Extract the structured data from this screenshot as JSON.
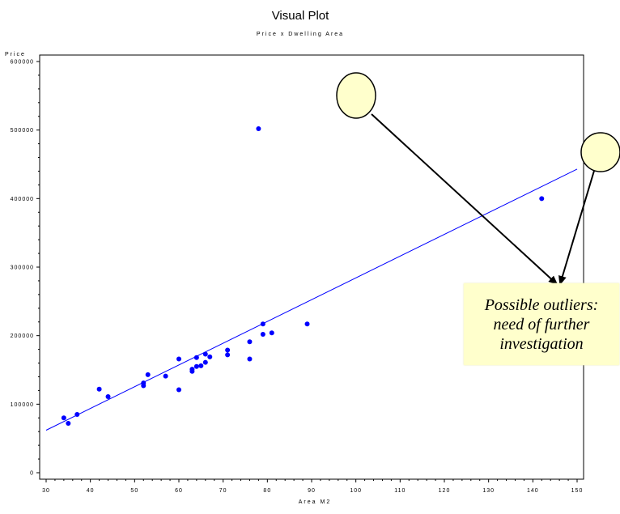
{
  "chart_data": {
    "type": "scatter",
    "title": "Visual Plot",
    "subtitle": "Price x Dwelling Area",
    "xlabel": "Area M2",
    "ylabel": "Price",
    "xlim": [
      30,
      150
    ],
    "ylim": [
      0,
      600000
    ],
    "x_ticks": [
      30,
      40,
      50,
      60,
      70,
      80,
      90,
      100,
      110,
      120,
      130,
      140,
      150
    ],
    "y_ticks": [
      0,
      100000,
      200000,
      300000,
      400000,
      500000,
      600000
    ],
    "x_tick_labels": [
      "30",
      "40",
      "50",
      "60",
      "70",
      "80",
      "90",
      "100",
      "110",
      "120",
      "130",
      "140",
      "150"
    ],
    "y_tick_labels": [
      "0",
      "100000",
      "200000",
      "300000",
      "400000",
      "500000",
      "600000"
    ],
    "grid": false,
    "point_color": "#0000ff",
    "line_color": "#0000ff",
    "points": [
      {
        "x": 34,
        "y": 80000
      },
      {
        "x": 35,
        "y": 72000
      },
      {
        "x": 37,
        "y": 85000
      },
      {
        "x": 42,
        "y": 122000
      },
      {
        "x": 44,
        "y": 111000
      },
      {
        "x": 52,
        "y": 131000
      },
      {
        "x": 52,
        "y": 127000
      },
      {
        "x": 53,
        "y": 143000
      },
      {
        "x": 57,
        "y": 141000
      },
      {
        "x": 60,
        "y": 166000
      },
      {
        "x": 60,
        "y": 121000
      },
      {
        "x": 63,
        "y": 151000
      },
      {
        "x": 63,
        "y": 148000
      },
      {
        "x": 64,
        "y": 168000
      },
      {
        "x": 64,
        "y": 155000
      },
      {
        "x": 65,
        "y": 156000
      },
      {
        "x": 66,
        "y": 173000
      },
      {
        "x": 66,
        "y": 161000
      },
      {
        "x": 67,
        "y": 169000
      },
      {
        "x": 71,
        "y": 179000
      },
      {
        "x": 71,
        "y": 172000
      },
      {
        "x": 76,
        "y": 191000
      },
      {
        "x": 76,
        "y": 166000
      },
      {
        "x": 78,
        "y": 502000
      },
      {
        "x": 79,
        "y": 217000
      },
      {
        "x": 79,
        "y": 202000
      },
      {
        "x": 81,
        "y": 204000
      },
      {
        "x": 89,
        "y": 217000
      },
      {
        "x": 142,
        "y": 400000
      }
    ],
    "fit_line": {
      "start": {
        "x": 30,
        "y": 62000
      },
      "end": {
        "x": 150,
        "y": 443000
      }
    }
  },
  "annotation": {
    "lines": [
      "Possible outliers:",
      "need of further",
      "investigation"
    ],
    "box_color": "#ffffcc",
    "circle_color": "#ffffcc"
  }
}
